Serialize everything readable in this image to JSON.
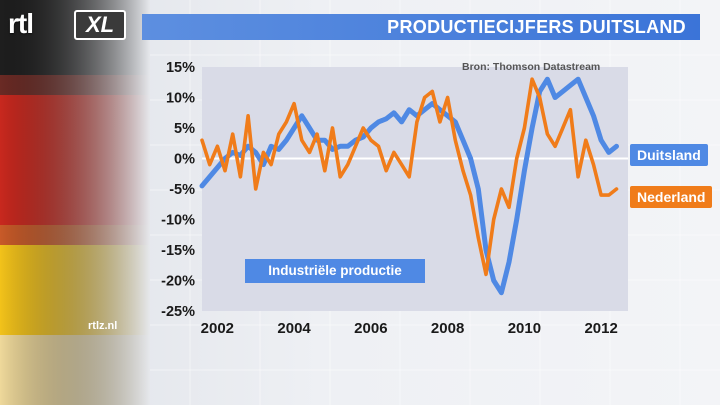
{
  "header": {
    "logo_text": "rtl XL",
    "title": "PRODUCTIECIJFERS DUITSLAND"
  },
  "source": "Bron: Thomson Datastream",
  "footer": {
    "website": "rtlz.nl"
  },
  "colors": {
    "title_bar": "#3b74d8",
    "duitsland": "#4f89e4",
    "nederland": "#f07c1a",
    "plot_bg": "#d9dbe7"
  },
  "chart_data": {
    "type": "line",
    "title": "PRODUCTIECIJFERS DUITSLAND",
    "annotation": "Industriële productie",
    "xlabel": "",
    "ylabel": "",
    "ylim": [
      -25,
      15
    ],
    "xlim": [
      2001.6,
      2012.7
    ],
    "yticks": [
      "15%",
      "10%",
      "5%",
      "0%",
      "-5%",
      "-10%",
      "-15%",
      "-20%",
      "-25%"
    ],
    "xticks": [
      "2002",
      "2004",
      "2006",
      "2008",
      "2010",
      "2012"
    ],
    "grid": true,
    "legend_position": "right, at line ends",
    "series": [
      {
        "name": "Duitsland",
        "x": [
          2001.6,
          2001.8,
          2002.0,
          2002.2,
          2002.4,
          2002.6,
          2002.8,
          2003.0,
          2003.2,
          2003.4,
          2003.6,
          2003.8,
          2004.0,
          2004.2,
          2004.4,
          2004.6,
          2004.8,
          2005.0,
          2005.2,
          2005.4,
          2005.6,
          2005.8,
          2006.0,
          2006.2,
          2006.4,
          2006.6,
          2006.8,
          2007.0,
          2007.2,
          2007.4,
          2007.6,
          2007.8,
          2008.0,
          2008.2,
          2008.4,
          2008.6,
          2008.8,
          2009.0,
          2009.2,
          2009.4,
          2009.6,
          2009.8,
          2010.0,
          2010.2,
          2010.4,
          2010.6,
          2010.8,
          2011.0,
          2011.2,
          2011.4,
          2011.6,
          2011.8,
          2012.0,
          2012.2,
          2012.4
        ],
        "values": [
          -4.5,
          -3,
          -1.5,
          0,
          1,
          0.5,
          2,
          1,
          -1,
          2,
          1.5,
          3,
          5,
          7,
          5,
          3,
          3,
          1.5,
          2,
          2,
          3,
          3.5,
          5,
          6,
          6.5,
          7.5,
          6,
          8,
          7,
          8,
          9,
          8,
          7,
          6,
          3,
          0,
          -5,
          -15,
          -20,
          -22,
          -17,
          -10,
          -2,
          5,
          11,
          13,
          10,
          11,
          12,
          13,
          10,
          7,
          3,
          1,
          2
        ]
      },
      {
        "name": "Nederland",
        "x": [
          2001.6,
          2001.8,
          2002.0,
          2002.2,
          2002.4,
          2002.6,
          2002.8,
          2003.0,
          2003.2,
          2003.4,
          2003.6,
          2003.8,
          2004.0,
          2004.2,
          2004.4,
          2004.6,
          2004.8,
          2005.0,
          2005.2,
          2005.4,
          2005.6,
          2005.8,
          2006.0,
          2006.2,
          2006.4,
          2006.6,
          2006.8,
          2007.0,
          2007.2,
          2007.4,
          2007.6,
          2007.8,
          2008.0,
          2008.2,
          2008.4,
          2008.6,
          2008.8,
          2009.0,
          2009.2,
          2009.4,
          2009.6,
          2009.8,
          2010.0,
          2010.2,
          2010.4,
          2010.6,
          2010.8,
          2011.0,
          2011.2,
          2011.4,
          2011.6,
          2011.8,
          2012.0,
          2012.2,
          2012.4
        ],
        "values": [
          3,
          -1,
          2,
          -2,
          4,
          -3,
          7,
          -5,
          1,
          -1,
          4,
          6,
          9,
          3,
          1,
          4,
          -2,
          5,
          -3,
          -1,
          2,
          5,
          3,
          2,
          -2,
          1,
          -1,
          -3,
          6,
          10,
          11,
          6,
          10,
          3,
          -2,
          -6,
          -13,
          -19,
          -10,
          -5,
          -8,
          0,
          5,
          13,
          10,
          4,
          2,
          5,
          8,
          -3,
          3,
          -1,
          -6,
          -6,
          -5
        ]
      }
    ]
  }
}
